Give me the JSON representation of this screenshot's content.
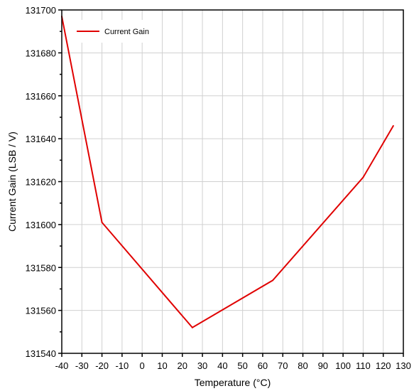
{
  "chart_data": {
    "type": "line",
    "title": "",
    "xlabel": "Temperature (°C)",
    "ylabel": "Current Gain (LSB / V)",
    "xlim": [
      -40,
      130
    ],
    "ylim": [
      131540,
      131700
    ],
    "x_ticks": [
      -40,
      -30,
      -20,
      -10,
      0,
      10,
      20,
      30,
      40,
      50,
      60,
      70,
      80,
      90,
      100,
      110,
      120,
      130
    ],
    "y_ticks": [
      131540,
      131560,
      131580,
      131600,
      131620,
      131640,
      131660,
      131680,
      131700
    ],
    "grid": true,
    "legend_position": "top-left",
    "series": [
      {
        "name": "Current Gain",
        "color": "#e00000",
        "x": [
          -40,
          -20,
          25,
          65,
          110,
          125
        ],
        "y": [
          131697,
          131601,
          131552,
          131574,
          131622,
          131646
        ]
      }
    ]
  }
}
